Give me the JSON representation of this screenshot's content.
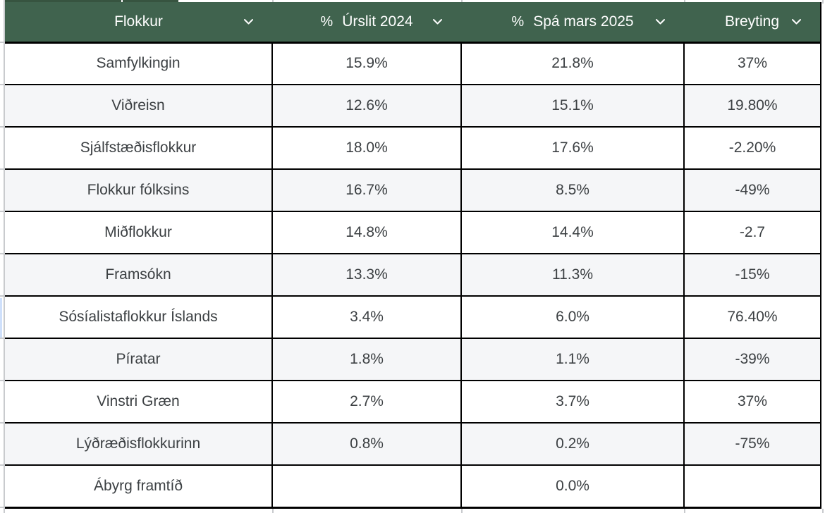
{
  "colors": {
    "header_bg": "#40634E",
    "header_text": "#FFFFFF",
    "row_alt_bg": "#F5F6F8",
    "table_border": "#000000",
    "sheet_gridline": "#C9CBCE",
    "body_text": "#3C4043",
    "row_above_fill": "#375440",
    "selection_sliver": "#CFE0FB"
  },
  "table": {
    "columns": [
      {
        "label": "Flokkur",
        "type_icon": ""
      },
      {
        "label": "Úrslit 2024",
        "type_icon": "%"
      },
      {
        "label": "Spá mars 2025",
        "type_icon": "%"
      },
      {
        "label": "Breyting",
        "type_icon": ""
      }
    ],
    "rows": [
      [
        "Samfylkingin",
        "15.9%",
        "21.8%",
        "37%"
      ],
      [
        "Viðreisn",
        "12.6%",
        "15.1%",
        "19.80%"
      ],
      [
        "Sjálfstæðisflokkur",
        "18.0%",
        "17.6%",
        "-2.20%"
      ],
      [
        "Flokkur fólksins",
        "16.7%",
        "8.5%",
        "-49%"
      ],
      [
        "Miðflokkur",
        "14.8%",
        "14.4%",
        "-2.7"
      ],
      [
        "Framsókn",
        "13.3%",
        "11.3%",
        "-15%"
      ],
      [
        "Sósíalistaflokkur Íslands",
        "3.4%",
        "6.0%",
        "76.40%"
      ],
      [
        "Píratar",
        "1.8%",
        "1.1%",
        "-39%"
      ],
      [
        "Vinstri Græn",
        "2.7%",
        "3.7%",
        "37%"
      ],
      [
        "Lýðræðisflokkurinn",
        "0.8%",
        "0.2%",
        "-75%"
      ],
      [
        "Ábyrg framtíð",
        "",
        "0.0%",
        ""
      ]
    ]
  }
}
